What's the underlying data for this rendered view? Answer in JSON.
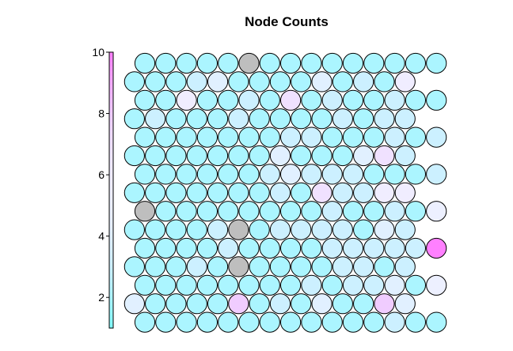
{
  "chart_data": {
    "type": "heatmap",
    "title": "Node Counts",
    "grid": "hexagonal",
    "grid_size": {
      "cols": 15,
      "rows": 15
    },
    "colorbar": {
      "ticks": [
        "2",
        "4",
        "6",
        "8",
        "10"
      ],
      "range": [
        1,
        10
      ],
      "colors": {
        "low": "#80ffff",
        "high": "#ff80ff"
      }
    },
    "empty_color": "#bebebe",
    "rows_top_to_bottom": [
      [
        2,
        2,
        2,
        2,
        2,
        0,
        2,
        2,
        2,
        2,
        2,
        2,
        2,
        2,
        2
      ],
      [
        2,
        2,
        2,
        3,
        4,
        2,
        2,
        2,
        2,
        4,
        2,
        3,
        2,
        6
      ],
      [
        2,
        2,
        6,
        2,
        2,
        3,
        2,
        7,
        2,
        3,
        2,
        2,
        3,
        2,
        2
      ],
      [
        2,
        3,
        2,
        2,
        2,
        3,
        2,
        2,
        2,
        2,
        3,
        2,
        3,
        3
      ],
      [
        2,
        2,
        2,
        2,
        2,
        2,
        2,
        3,
        3,
        2,
        2,
        2,
        3,
        2,
        3
      ],
      [
        2,
        2,
        2,
        2,
        2,
        2,
        2,
        4,
        2,
        2,
        2,
        4,
        7,
        3
      ],
      [
        2,
        2,
        2,
        2,
        2,
        2,
        3,
        4,
        3,
        3,
        3,
        2,
        2,
        2,
        3
      ],
      [
        2,
        2,
        2,
        2,
        2,
        2,
        2,
        3,
        2,
        7,
        3,
        3,
        6,
        6
      ],
      [
        0,
        2,
        2,
        2,
        2,
        2,
        2,
        2,
        2,
        3,
        2,
        2,
        3,
        2,
        5
      ],
      [
        2,
        2,
        2,
        2,
        3,
        0,
        2,
        3,
        3,
        3,
        3,
        2,
        4,
        3
      ],
      [
        2,
        2,
        2,
        2,
        3,
        2,
        2,
        2,
        2,
        3,
        3,
        3,
        3,
        3,
        10
      ],
      [
        2,
        2,
        2,
        3,
        2,
        0,
        2,
        2,
        2,
        2,
        3,
        3,
        2,
        3
      ],
      [
        2,
        2,
        2,
        2,
        2,
        2,
        2,
        2,
        3,
        2,
        3,
        3,
        4,
        2,
        5
      ],
      [
        4,
        2,
        2,
        2,
        2,
        8,
        2,
        3,
        2,
        4,
        2,
        2,
        8,
        4
      ],
      [
        2,
        2,
        2,
        2,
        2,
        2,
        2,
        2,
        2,
        2,
        2,
        2,
        3,
        2,
        2
      ]
    ]
  }
}
